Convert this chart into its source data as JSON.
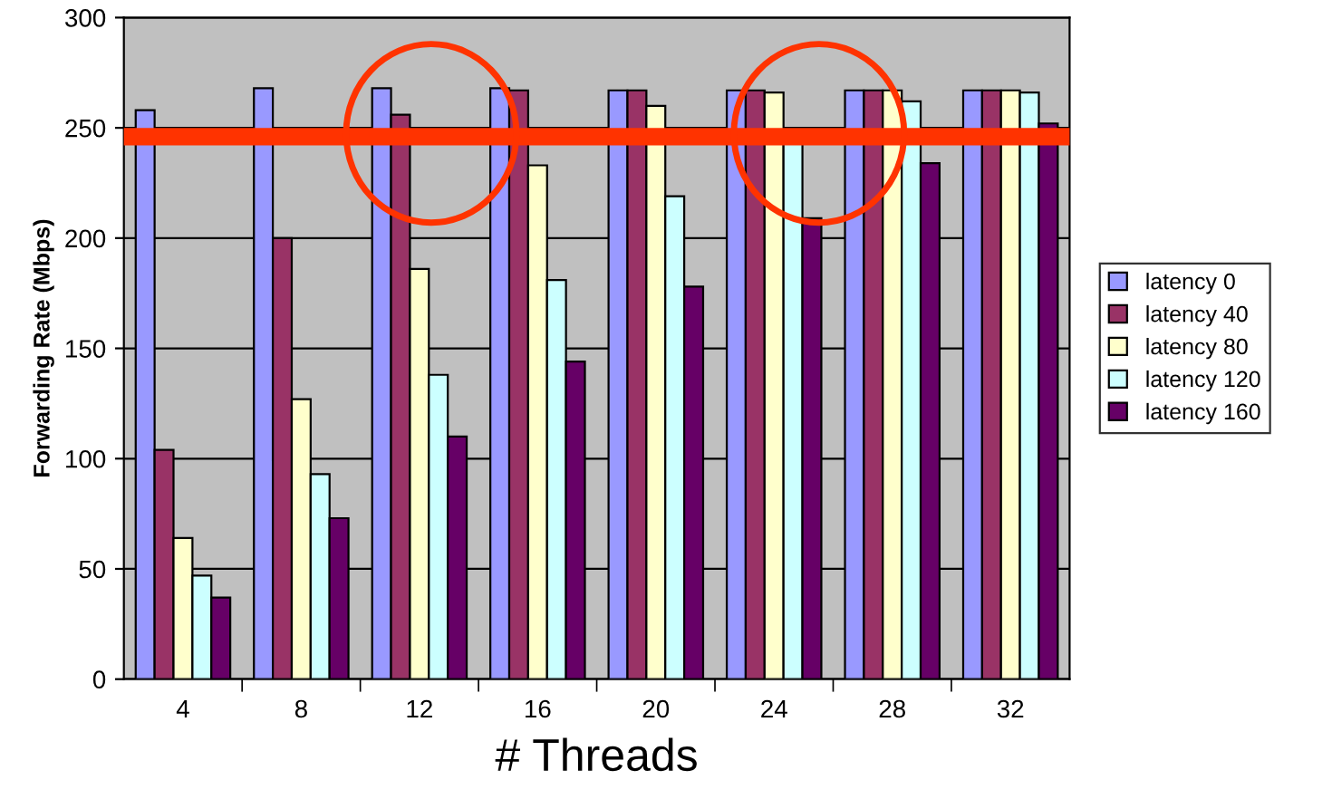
{
  "chart_data": {
    "type": "bar",
    "xlabel": "# Threads",
    "ylabel": "Forwarding Rate (Mbps)",
    "categories": [
      "4",
      "8",
      "12",
      "16",
      "20",
      "24",
      "28",
      "32"
    ],
    "series": [
      {
        "name": "latency 0",
        "color": "#9999ff",
        "values": [
          258,
          268,
          268,
          268,
          267,
          267,
          267,
          267
        ]
      },
      {
        "name": "latency 40",
        "color": "#993366",
        "values": [
          104,
          200,
          256,
          267,
          267,
          267,
          267,
          267
        ]
      },
      {
        "name": "latency 80",
        "color": "#ffffcc",
        "values": [
          64,
          127,
          186,
          233,
          260,
          266,
          267,
          267
        ]
      },
      {
        "name": "latency 120",
        "color": "#ccffff",
        "values": [
          47,
          93,
          138,
          181,
          219,
          244,
          262,
          266
        ]
      },
      {
        "name": "latency 160",
        "color": "#660066",
        "values": [
          37,
          73,
          110,
          144,
          178,
          209,
          234,
          252
        ]
      }
    ],
    "ylim": [
      0,
      300
    ],
    "yticks": [
      0,
      50,
      100,
      150,
      200,
      250,
      300
    ],
    "grid": "y",
    "legend": "right",
    "ref_lines": [
      {
        "axis": "y",
        "value": 246,
        "color": "#ff3300"
      }
    ]
  }
}
